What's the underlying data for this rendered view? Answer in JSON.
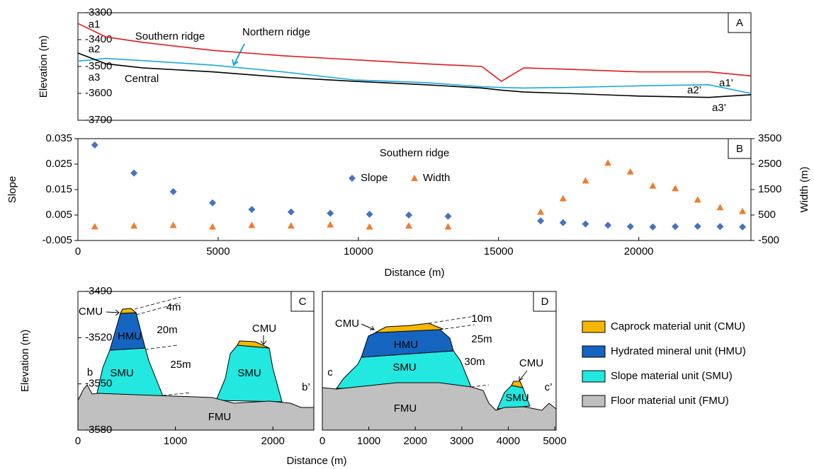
{
  "chart_data": [
    {
      "type": "line",
      "panel": "A",
      "ylabel": "Elevation (m)",
      "x": [
        0,
        1000,
        2300,
        4800,
        7300,
        9850,
        12400,
        14400,
        15100,
        15900,
        17400,
        20000,
        22500,
        24000
      ],
      "xlim": [
        0,
        24000
      ],
      "ylim": [
        -3700,
        -3300
      ],
      "yticks": [
        -3700,
        -3600,
        -3500,
        -3400,
        -3300
      ],
      "series": [
        {
          "name": "Southern ridge",
          "color": "#e31a1c",
          "values": [
            -3340,
            -3390,
            -3410,
            -3440,
            -3460,
            -3475,
            -3490,
            -3500,
            -3555,
            -3505,
            -3510,
            -3520,
            -3520,
            -3535
          ]
        },
        {
          "name": "Northern ridge",
          "color": "#1ba9df",
          "values": [
            -3480,
            -3470,
            -3478,
            -3495,
            -3520,
            -3550,
            -3560,
            -3575,
            -3578,
            -3580,
            -3578,
            -3572,
            -3568,
            -3600
          ]
        },
        {
          "name": "Central",
          "color": "#000000",
          "values": [
            -3450,
            -3490,
            -3505,
            -3520,
            -3540,
            -3555,
            -3568,
            -3580,
            -3588,
            -3595,
            -3600,
            -3610,
            -3615,
            -3605
          ]
        }
      ],
      "annotations": [
        "a1",
        "a2",
        "a3",
        "a1’",
        "a2’",
        "a3’"
      ]
    },
    {
      "type": "scatter",
      "panel": "B",
      "title": "Southern ridge",
      "xlabel": "Distance (m)",
      "ylabel": "Slope",
      "y2label": "Width (m)",
      "x": [
        600,
        2000,
        3400,
        4800,
        6200,
        7600,
        9000,
        10400,
        11800,
        13200,
        16500,
        17300,
        18100,
        18900,
        19700,
        20500,
        21300,
        22100,
        22900,
        23700
      ],
      "xlim": [
        0,
        24000
      ],
      "xticks": [
        0,
        5000,
        10000,
        15000,
        20000
      ],
      "ylim": [
        -0.005,
        0.035
      ],
      "yticks": [
        -0.005,
        0.005,
        0.015,
        0.025,
        0.035
      ],
      "y2lim": [
        -500,
        3500
      ],
      "y2ticks": [
        -500,
        500,
        1500,
        2500,
        3500
      ],
      "series": [
        {
          "name": "Slope",
          "color": "#4472c4",
          "marker": "diamond",
          "values": [
            0.0325,
            0.0215,
            0.0142,
            0.0098,
            0.0072,
            0.0062,
            0.0057,
            0.0053,
            0.005,
            0.0045,
            0.0027,
            0.002,
            0.0015,
            0.001,
            0.0005,
            0.0003,
            0.0005,
            0.0006,
            0.0005,
            0.0003
          ]
        },
        {
          "name": "Width",
          "color": "#ed7d31",
          "marker": "triangle",
          "axis": "y2",
          "values": [
            50,
            80,
            100,
            40,
            100,
            80,
            120,
            40,
            80,
            40,
            620,
            1150,
            1850,
            2550,
            2200,
            1650,
            1550,
            1100,
            800,
            650
          ]
        }
      ]
    },
    {
      "type": "cross-section",
      "panel": "C",
      "ylabel": "Elevation (m)",
      "xlabel": "Distance (m)",
      "xlim": [
        0,
        2420
      ],
      "xticks": [
        0,
        1000,
        2000
      ],
      "ylim": [
        -3580,
        -3490
      ],
      "yticks": [
        -3580,
        -3550,
        -3520,
        -3490
      ],
      "labels": [
        "CMU",
        "HMU",
        "SMU",
        "SMU",
        "FMU",
        "CMU",
        "4m",
        "20m",
        "25m",
        "b",
        "b’"
      ]
    },
    {
      "type": "cross-section",
      "panel": "D",
      "xlim": [
        0,
        5030
      ],
      "xticks": [
        0,
        1000,
        2000,
        3000,
        4000,
        5000
      ],
      "labels": [
        "CMU",
        "HMU",
        "SMU",
        "FMU",
        "SMU",
        "CMU",
        "10m",
        "25m",
        "30m",
        "c",
        "c’"
      ]
    }
  ],
  "legend": [
    {
      "name": "Caprock material unit (CMU)",
      "color": "#f5b800"
    },
    {
      "name": "Hydrated mineral unit (HMU)",
      "color": "#1565c0"
    },
    {
      "name": "Slope material unit (SMU)",
      "color": "#22e8e0"
    },
    {
      "name": "Floor material unit (FMU)",
      "color": "#c0c0c0"
    }
  ]
}
